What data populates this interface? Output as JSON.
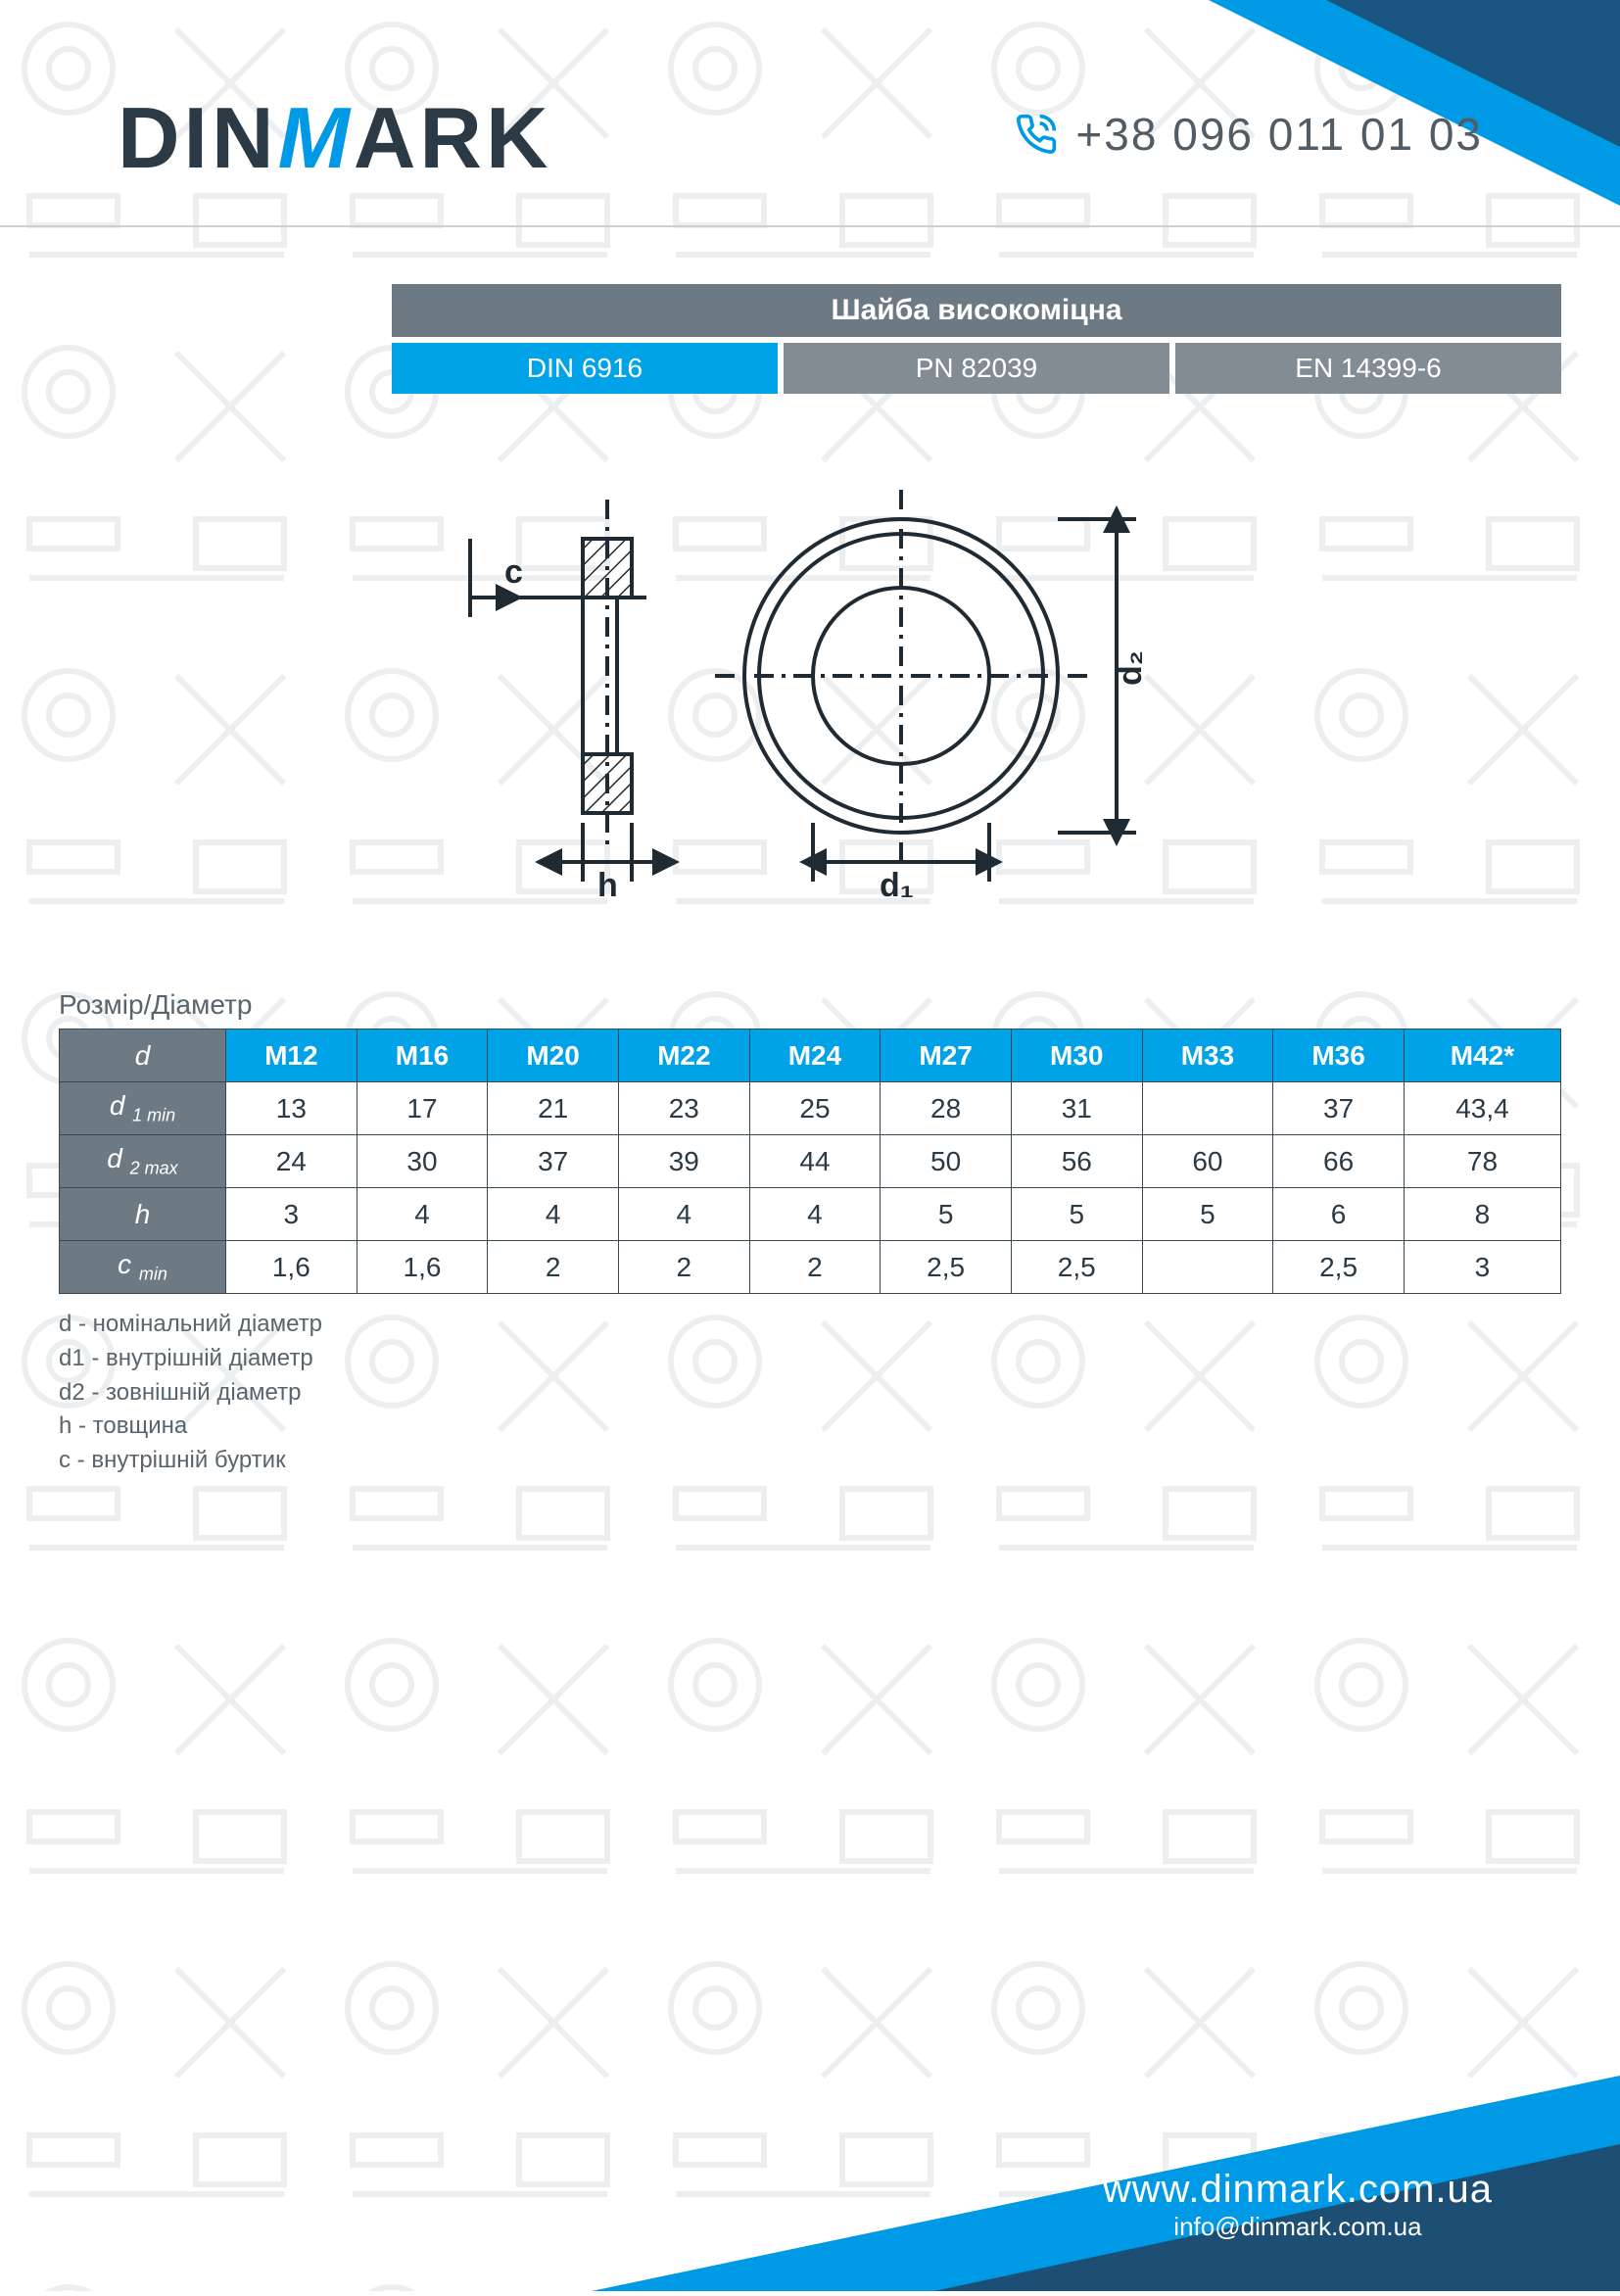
{
  "brand": {
    "pre": "DIN",
    "accent": "M",
    "post": "ARK"
  },
  "phone": "+38 096 011 01 03",
  "product_title": "Шайба високоміцна",
  "standards": [
    {
      "label": "DIN 6916",
      "style": "blue"
    },
    {
      "label": "PN 82039",
      "style": "grey"
    },
    {
      "label": "EN 14399-6",
      "style": "grey"
    }
  ],
  "diagram": {
    "stroke": "#1f2a33",
    "hatch": "#1f2a33",
    "labels": {
      "c": "c",
      "h": "h",
      "d1": "d₁",
      "d2": "d₂"
    }
  },
  "table": {
    "title": "Розмір/Діаметр",
    "header_color": "#00a3e8",
    "rowhead_color": "#6d7a83",
    "border_color": "#3a4750",
    "text_color": "#2b3a45",
    "columns": [
      "M12",
      "M16",
      "M20",
      "M22",
      "M24",
      "M27",
      "M30",
      "M33",
      "M36",
      "M42*"
    ],
    "rows": [
      {
        "label_html": "d",
        "values": [
          "",
          "",
          "",
          "",
          "",
          "",
          "",
          "",
          "",
          ""
        ]
      },
      {
        "label_html": "d <sub>1 min</sub>",
        "values": [
          "13",
          "17",
          "21",
          "23",
          "25",
          "28",
          "31",
          "",
          "37",
          "43,4"
        ]
      },
      {
        "label_html": "d <sub>2 max</sub>",
        "values": [
          "24",
          "30",
          "37",
          "39",
          "44",
          "50",
          "56",
          "60",
          "66",
          "78"
        ]
      },
      {
        "label_html": "h",
        "values": [
          "3",
          "4",
          "4",
          "4",
          "4",
          "5",
          "5",
          "5",
          "6",
          "8"
        ]
      },
      {
        "label_html": "c <sub>min</sub>",
        "values": [
          "1,6",
          "1,6",
          "2",
          "2",
          "2",
          "2,5",
          "2,5",
          "",
          "2,5",
          "3"
        ]
      }
    ]
  },
  "legend": [
    "d  - номінальний діаметр",
    "d1 - внутрішній діаметр",
    "d2 - зовнішній діаметр",
    "h - товщина",
    "c - внутрішній буртик"
  ],
  "footer": {
    "url": "www.dinmark.com.ua",
    "email": "info@dinmark.com.ua"
  },
  "colors": {
    "accent_blue": "#0099e5",
    "dark_blue": "#1d4e73",
    "grey": "#6d7a83"
  }
}
